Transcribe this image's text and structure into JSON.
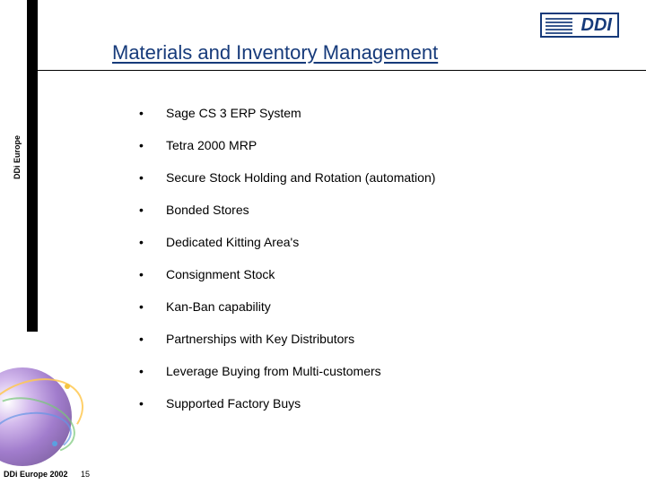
{
  "brand": {
    "side_label": "DDi Europe",
    "logo_text": "DDI",
    "logo_color": "#163a7a"
  },
  "title": "Materials and Inventory Management",
  "title_color": "#163a7a",
  "bullets": [
    "Sage CS 3 ERP System",
    "Tetra 2000 MRP",
    "Secure Stock Holding and Rotation (automation)",
    "Bonded Stores",
    "Dedicated Kitting Area's",
    "Consignment Stock",
    "Kan-Ban capability",
    "Partnerships with Key Distributors",
    "Leverage Buying from Multi-customers",
    "Supported Factory Buys"
  ],
  "footer": {
    "copyright": "DDi Europe 2002",
    "page_number": "15"
  },
  "style": {
    "body_fontsize": 14,
    "title_fontsize": 22,
    "bullet_spacing": 20,
    "background_color": "#ffffff",
    "text_color": "#000000",
    "divider_color": "#000000",
    "left_bar_color": "#000000"
  }
}
